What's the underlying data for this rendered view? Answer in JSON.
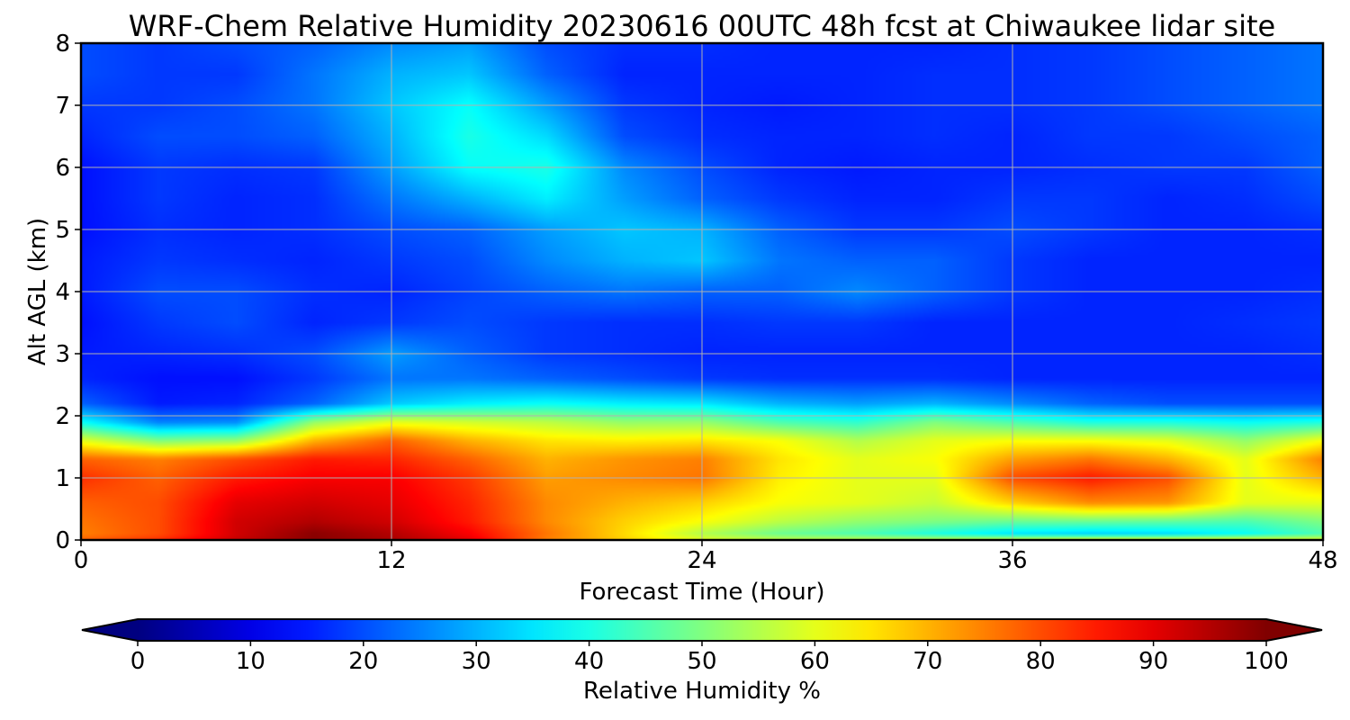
{
  "chart_data": {
    "type": "heatmap",
    "title": "WRF-Chem Relative Humidity 20230616 00UTC 48h fcst at Chiwaukee lidar site",
    "xlabel": "Forecast Time (Hour)",
    "ylabel": "Alt AGL (km)",
    "xlim": [
      0,
      48
    ],
    "ylim": [
      0,
      8
    ],
    "xticks": [
      0,
      12,
      24,
      36,
      48
    ],
    "yticks": [
      0,
      1,
      2,
      3,
      4,
      5,
      6,
      7,
      8
    ],
    "grid": true,
    "colorbar": {
      "label": "Relative Humidity %",
      "ticks": [
        0,
        10,
        20,
        30,
        40,
        50,
        60,
        70,
        80,
        90,
        100
      ],
      "range": [
        0,
        100
      ],
      "extend": "both",
      "colormap": "jet",
      "orientation": "horizontal",
      "placement": "bottom"
    },
    "x": [
      0,
      3,
      6,
      9,
      12,
      15,
      18,
      21,
      24,
      27,
      30,
      33,
      36,
      39,
      42,
      45,
      48
    ],
    "y": [
      0,
      0.1,
      0.3,
      0.6,
      1.0,
      1.3,
      1.6,
      1.9,
      2.2,
      2.6,
      3.0,
      3.5,
      4.0,
      4.5,
      5.0,
      5.5,
      6.0,
      6.5,
      7.0,
      7.5,
      8.0
    ],
    "z": [
      [
        78,
        83,
        93,
        99,
        96,
        90,
        75,
        67,
        60,
        57,
        57,
        57,
        59,
        62,
        62,
        62,
        60
      ],
      [
        75,
        80,
        92,
        99,
        95,
        88,
        76,
        66,
        55,
        48,
        45,
        40,
        35,
        33,
        34,
        38,
        45
      ],
      [
        76,
        80,
        92,
        95,
        92,
        85,
        74,
        67,
        62,
        56,
        52,
        50,
        48,
        48,
        47,
        45,
        50
      ],
      [
        78,
        80,
        90,
        92,
        90,
        84,
        74,
        70,
        67,
        62,
        60,
        57,
        67,
        74,
        73,
        60,
        60
      ],
      [
        83,
        78,
        85,
        88,
        88,
        82,
        72,
        74,
        76,
        64,
        60,
        60,
        80,
        85,
        80,
        60,
        70
      ],
      [
        78,
        75,
        80,
        85,
        84,
        78,
        70,
        73,
        75,
        65,
        60,
        62,
        72,
        76,
        70,
        60,
        75
      ],
      [
        60,
        50,
        52,
        70,
        78,
        70,
        65,
        64,
        65,
        62,
        55,
        60,
        62,
        62,
        60,
        52,
        62
      ],
      [
        38,
        25,
        26,
        52,
        60,
        58,
        56,
        52,
        52,
        45,
        42,
        50,
        45,
        40,
        40,
        38,
        40
      ],
      [
        22,
        15,
        16,
        22,
        32,
        36,
        38,
        36,
        35,
        30,
        28,
        30,
        26,
        22,
        20,
        20,
        20
      ],
      [
        16,
        14,
        14,
        18,
        24,
        24,
        22,
        20,
        18,
        17,
        17,
        17,
        16,
        16,
        16,
        16,
        16
      ],
      [
        15,
        16,
        17,
        20,
        28,
        22,
        18,
        17,
        16,
        16,
        16,
        16,
        16,
        16,
        16,
        16,
        17
      ],
      [
        14,
        18,
        20,
        16,
        18,
        20,
        18,
        17,
        17,
        18,
        18,
        16,
        16,
        16,
        16,
        17,
        18
      ],
      [
        15,
        20,
        20,
        17,
        16,
        19,
        22,
        24,
        22,
        22,
        26,
        22,
        18,
        16,
        16,
        16,
        17
      ],
      [
        15,
        18,
        17,
        16,
        18,
        20,
        26,
        30,
        32,
        24,
        22,
        22,
        18,
        16,
        16,
        16,
        16
      ],
      [
        14,
        17,
        16,
        17,
        20,
        22,
        28,
        32,
        30,
        22,
        18,
        18,
        20,
        18,
        16,
        16,
        17
      ],
      [
        14,
        18,
        16,
        17,
        24,
        30,
        36,
        28,
        22,
        18,
        16,
        16,
        18,
        18,
        16,
        17,
        20
      ],
      [
        14,
        18,
        17,
        18,
        28,
        38,
        40,
        26,
        20,
        16,
        15,
        16,
        16,
        17,
        18,
        18,
        22
      ],
      [
        16,
        20,
        20,
        22,
        30,
        40,
        34,
        20,
        17,
        16,
        16,
        17,
        16,
        18,
        18,
        20,
        22
      ],
      [
        18,
        18,
        20,
        24,
        32,
        38,
        28,
        18,
        16,
        15,
        16,
        17,
        17,
        18,
        20,
        22,
        24
      ],
      [
        20,
        18,
        18,
        24,
        30,
        32,
        22,
        16,
        16,
        16,
        16,
        17,
        17,
        18,
        20,
        22,
        24
      ],
      [
        20,
        18,
        20,
        22,
        26,
        28,
        20,
        17,
        17,
        16,
        16,
        16,
        17,
        18,
        20,
        22,
        24
      ]
    ]
  }
}
